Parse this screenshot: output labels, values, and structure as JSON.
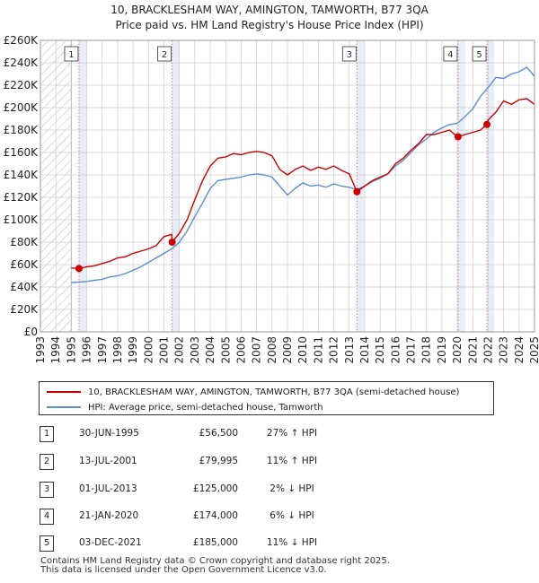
{
  "title_line1": "10, BRACKLESHAM WAY, AMINGTON, TAMWORTH, B77 3QA",
  "title_line2": "Price paid vs. HM Land Registry's House Price Index (HPI)",
  "colors": {
    "property": "#cc0000",
    "hpi": "#5b8fd0",
    "highlight": "#e8eef8",
    "grid": "#cccccc",
    "marker_line": "#e07a9a"
  },
  "legend": {
    "property": "10, BRACKLESHAM WAY, AMINGTON, TAMWORTH, B77 3QA (semi-detached house)",
    "hpi": "HPI: Average price, semi-detached house, Tamworth"
  },
  "sales": [
    {
      "num": "1",
      "date": "30-JUN-1995",
      "price": "£56,500",
      "hpi": "27% ↑ HPI"
    },
    {
      "num": "2",
      "date": "13-JUL-2001",
      "price": "£79,995",
      "hpi": "11% ↑ HPI"
    },
    {
      "num": "3",
      "date": "01-JUL-2013",
      "price": "£125,000",
      "hpi": "2% ↓ HPI"
    },
    {
      "num": "4",
      "date": "21-JAN-2020",
      "price": "£174,000",
      "hpi": "6% ↓ HPI"
    },
    {
      "num": "5",
      "date": "03-DEC-2021",
      "price": "£185,000",
      "hpi": "11% ↓ HPI"
    }
  ],
  "footer_line1": "Contains HM Land Registry data © Crown copyright and database right 2025.",
  "footer_line2": "This data is licensed under the Open Government Licence v3.0.",
  "chart_data": {
    "type": "line",
    "title": "10, BRACKLESHAM WAY, AMINGTON, TAMWORTH, B77 3QA",
    "subtitle": "Price paid vs. HM Land Registry's House Price Index (HPI)",
    "xlabel": "",
    "ylabel": "",
    "xlim": [
      1993,
      2025
    ],
    "ylim": [
      0,
      260000
    ],
    "x_ticks": [
      "1993",
      "1994",
      "1995",
      "1996",
      "1997",
      "1998",
      "1999",
      "2000",
      "2001",
      "2002",
      "2003",
      "2004",
      "2005",
      "2006",
      "2007",
      "2008",
      "2009",
      "2010",
      "2011",
      "2012",
      "2013",
      "2014",
      "2015",
      "2016",
      "2017",
      "2018",
      "2019",
      "2020",
      "2021",
      "2022",
      "2023",
      "2024",
      "2025"
    ],
    "y_ticks": [
      {
        "value": 0,
        "label": "£0"
      },
      {
        "value": 20000,
        "label": "£20K"
      },
      {
        "value": 40000,
        "label": "£40K"
      },
      {
        "value": 60000,
        "label": "£60K"
      },
      {
        "value": 80000,
        "label": "£80K"
      },
      {
        "value": 100000,
        "label": "£100K"
      },
      {
        "value": 120000,
        "label": "£120K"
      },
      {
        "value": 140000,
        "label": "£140K"
      },
      {
        "value": 160000,
        "label": "£160K"
      },
      {
        "value": 180000,
        "label": "£180K"
      },
      {
        "value": 200000,
        "label": "£200K"
      },
      {
        "value": 220000,
        "label": "£220K"
      },
      {
        "value": 240000,
        "label": "£240K"
      },
      {
        "value": 260000,
        "label": "£260K"
      }
    ],
    "grid": true,
    "hatch_until": 1995.0,
    "sale_markers": [
      {
        "label": "1",
        "x": 1995.5,
        "y": 56500
      },
      {
        "label": "2",
        "x": 2001.53,
        "y": 79995
      },
      {
        "label": "3",
        "x": 2013.5,
        "y": 125000
      },
      {
        "label": "4",
        "x": 2020.05,
        "y": 174000
      },
      {
        "label": "5",
        "x": 2021.92,
        "y": 185000
      }
    ],
    "series": [
      {
        "name": "10, BRACKLESHAM WAY, AMINGTON, TAMWORTH, B77 3QA (semi-detached house)",
        "x": [
          1995.0,
          1995.5,
          1996.0,
          1996.5,
          1997.0,
          1997.5,
          1998.0,
          1998.5,
          1999.0,
          1999.5,
          2000.0,
          2000.5,
          2001.0,
          2001.5,
          2001.53,
          2002.0,
          2002.5,
          2003.0,
          2003.5,
          2004.0,
          2004.5,
          2005.0,
          2005.5,
          2006.0,
          2006.5,
          2007.0,
          2007.5,
          2008.0,
          2008.5,
          2009.0,
          2009.5,
          2010.0,
          2010.5,
          2011.0,
          2011.5,
          2012.0,
          2012.5,
          2013.0,
          2013.5,
          2014.0,
          2014.5,
          2015.0,
          2015.5,
          2016.0,
          2016.5,
          2017.0,
          2017.5,
          2018.0,
          2018.5,
          2019.0,
          2019.5,
          2020.0,
          2020.05,
          2020.5,
          2021.0,
          2021.5,
          2021.92,
          2022.0,
          2022.5,
          2023.0,
          2023.5,
          2024.0,
          2024.5,
          2025.0
        ],
        "values": [
          57000,
          56500,
          58000,
          59000,
          61000,
          63000,
          66000,
          67000,
          70000,
          72000,
          74000,
          77000,
          85000,
          87000,
          79995,
          88000,
          100000,
          118000,
          135000,
          148000,
          155000,
          156000,
          159000,
          158000,
          160000,
          161000,
          160000,
          157000,
          145000,
          140000,
          145000,
          148000,
          144000,
          147000,
          145000,
          148000,
          144000,
          141000,
          125000,
          130000,
          135000,
          138000,
          141000,
          150000,
          155000,
          162000,
          168000,
          176000,
          176000,
          178000,
          180000,
          174000,
          174000,
          176000,
          178000,
          180000,
          185000,
          189000,
          196000,
          206000,
          203000,
          207000,
          208000,
          203000
        ]
      },
      {
        "name": "HPI: Average price, semi-detached house, Tamworth",
        "x": [
          1995.0,
          1995.5,
          1996.0,
          1996.5,
          1997.0,
          1997.5,
          1998.0,
          1998.5,
          1999.0,
          1999.5,
          2000.0,
          2000.5,
          2001.0,
          2001.5,
          2002.0,
          2002.5,
          2003.0,
          2003.5,
          2004.0,
          2004.5,
          2005.0,
          2005.5,
          2006.0,
          2006.5,
          2007.0,
          2007.5,
          2008.0,
          2008.5,
          2009.0,
          2009.5,
          2010.0,
          2010.5,
          2011.0,
          2011.5,
          2012.0,
          2012.5,
          2013.0,
          2013.5,
          2014.0,
          2014.5,
          2015.0,
          2015.5,
          2016.0,
          2016.5,
          2017.0,
          2017.5,
          2018.0,
          2018.5,
          2019.0,
          2019.5,
          2020.0,
          2020.5,
          2021.0,
          2021.5,
          2022.0,
          2022.5,
          2023.0,
          2023.5,
          2024.0,
          2024.5,
          2025.0
        ],
        "values": [
          44000,
          44500,
          45000,
          46000,
          47000,
          49000,
          50000,
          52000,
          55000,
          58000,
          62000,
          66000,
          70000,
          74000,
          80000,
          90000,
          103000,
          115000,
          128000,
          135000,
          136000,
          137000,
          138000,
          140000,
          141000,
          140000,
          138000,
          130000,
          122000,
          128000,
          133000,
          130000,
          131000,
          129000,
          132000,
          130000,
          129000,
          127000,
          130000,
          134000,
          137000,
          141000,
          148000,
          153000,
          160000,
          167000,
          172000,
          178000,
          182000,
          185000,
          186000,
          192000,
          199000,
          210000,
          218000,
          227000,
          226000,
          230000,
          232000,
          236000,
          228000
        ]
      }
    ]
  }
}
